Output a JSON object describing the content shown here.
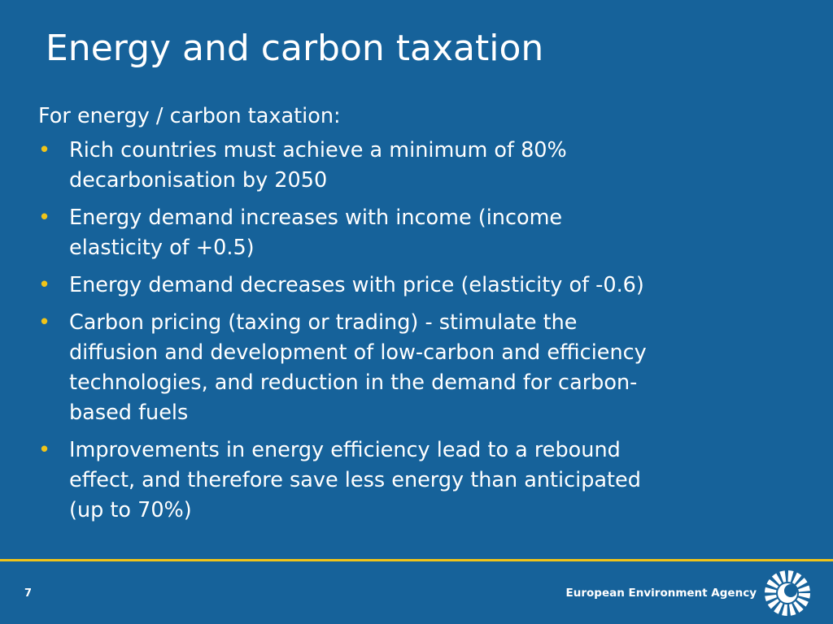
{
  "slide": {
    "title": "Energy and carbon taxation",
    "intro": "For energy / carbon taxation:",
    "bullets": [
      [
        "Rich countries must achieve a minimum of 80%",
        "decarbonisation by 2050"
      ],
      [
        "Energy demand increases with income (income",
        "elasticity of +0.5)"
      ],
      [
        "Energy demand decreases with price (elasticity of -0.6)"
      ],
      [
        "Carbon pricing (taxing or trading) - stimulate the",
        "diffusion and development of low-carbon and efficiency",
        "technologies, and reduction in the demand for carbon-",
        "based fuels"
      ],
      [
        "Improvements in energy efficiency lead to a rebound",
        "effect, and therefore save less energy than anticipated",
        "(up to 70%)"
      ]
    ],
    "page_number": "7",
    "organization": "European Environment Agency"
  }
}
